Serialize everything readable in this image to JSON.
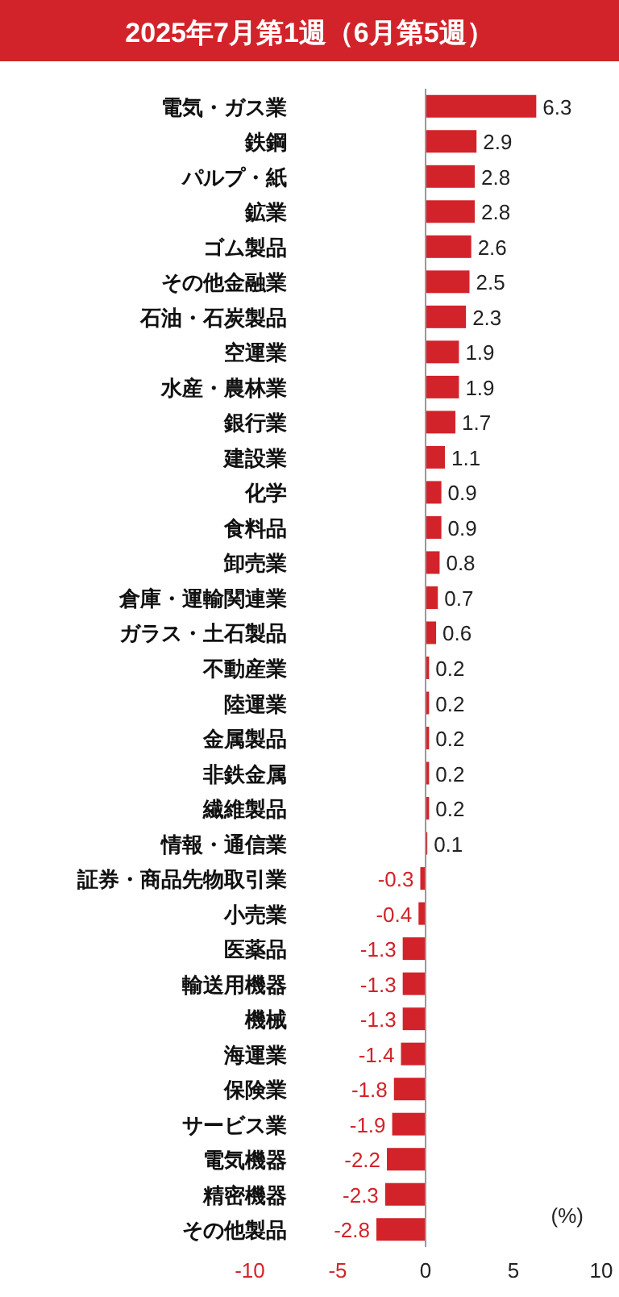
{
  "chart_data": {
    "type": "bar",
    "orientation": "horizontal",
    "title": "2025年7月第1週（6月第5週）",
    "categories": [
      "電気・ガス業",
      "鉄鋼",
      "パルプ・紙",
      "鉱業",
      "ゴム製品",
      "その他金融業",
      "石油・石炭製品",
      "空運業",
      "水産・農林業",
      "銀行業",
      "建設業",
      "化学",
      "食料品",
      "卸売業",
      "倉庫・運輸関連業",
      "ガラス・土石製品",
      "不動産業",
      "陸運業",
      "金属製品",
      "非鉄金属",
      "繊維製品",
      "情報・通信業",
      "証券・商品先物取引業",
      "小売業",
      "医薬品",
      "輸送用機器",
      "機械",
      "海運業",
      "保険業",
      "サービス業",
      "電気機器",
      "精密機器",
      "その他製品"
    ],
    "values": [
      6.3,
      2.9,
      2.8,
      2.8,
      2.6,
      2.5,
      2.3,
      1.9,
      1.9,
      1.7,
      1.1,
      0.9,
      0.9,
      0.8,
      0.7,
      0.6,
      0.2,
      0.2,
      0.2,
      0.2,
      0.2,
      0.1,
      -0.3,
      -0.4,
      -1.3,
      -1.3,
      -1.3,
      -1.4,
      -1.8,
      -1.9,
      -2.2,
      -2.3,
      -2.8
    ],
    "color": "#d2232a",
    "xlim": [
      -10,
      10
    ],
    "xticks": [
      -10,
      -5,
      0,
      5,
      10
    ],
    "data_labels": true,
    "annotations": [
      "(%)"
    ]
  }
}
